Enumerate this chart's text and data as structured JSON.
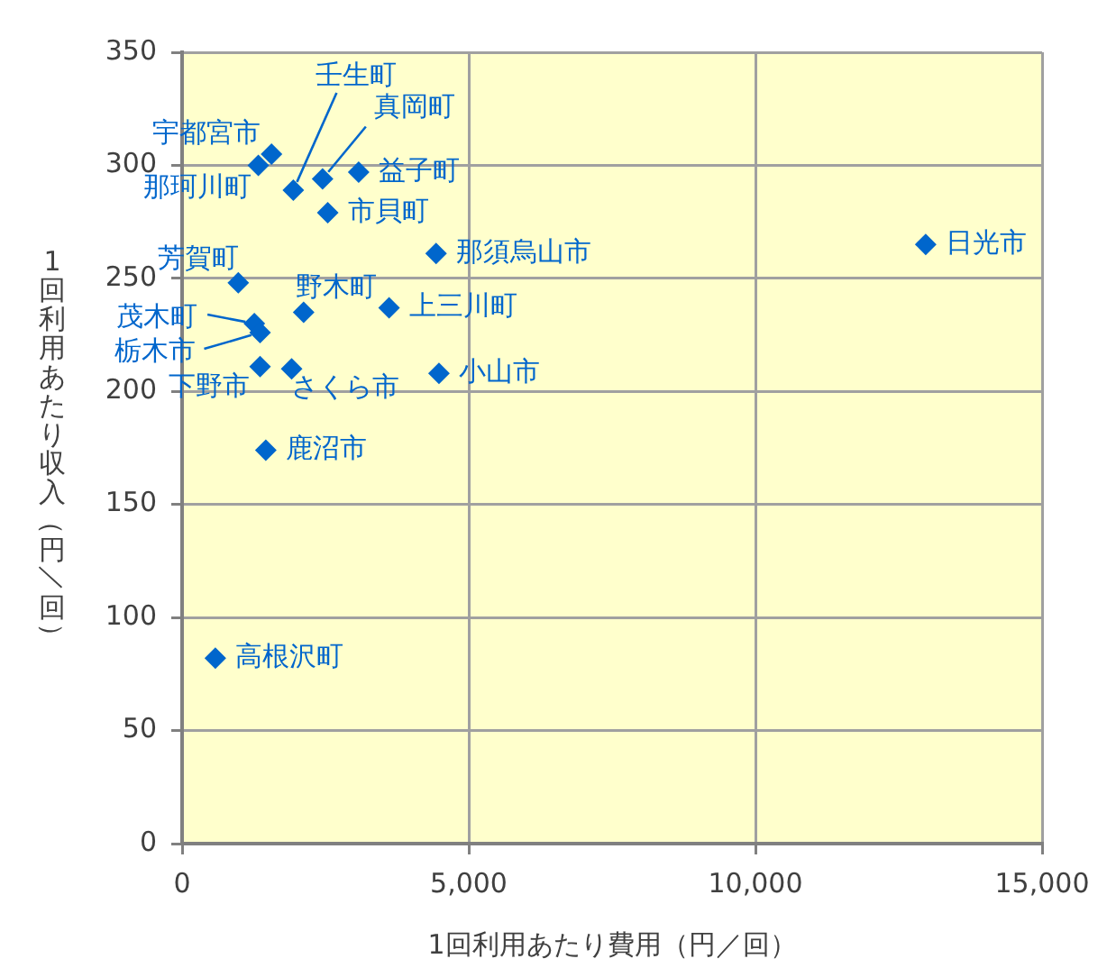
{
  "chart_data": {
    "type": "scatter",
    "xlabel": "1回利用あたり費用（円／回）",
    "ylabel": "1回利用あたり収入（円／回）",
    "x": [
      1560,
      1330,
      1940,
      2450,
      3080,
      2540,
      4430,
      980,
      2120,
      3610,
      1260,
      1360,
      1360,
      1910,
      4480,
      1460,
      580,
      12970
    ],
    "values": [
      305,
      300,
      289,
      294,
      297,
      279,
      261,
      248,
      235,
      237,
      230,
      226,
      211,
      210,
      208,
      174,
      82,
      265
    ],
    "color": "#0066cc",
    "marker": "diamond",
    "grid": true,
    "xlim": [
      0,
      15000
    ],
    "xticks": [
      0,
      {
        "value": 5000,
        "label": "5,000"
      },
      {
        "value": 10000,
        "label": "10,000"
      },
      {
        "value": 15000,
        "label": "15,000"
      }
    ],
    "ylim": [
      0,
      350
    ],
    "yticks": [
      0,
      50,
      100,
      150,
      200,
      250,
      300,
      350
    ],
    "annotations": [
      {
        "text": "宇都宮市",
        "x": 1560,
        "y": 305
      },
      {
        "text": "那珂川町",
        "x": 1330,
        "y": 300
      },
      {
        "text": "壬生町",
        "x": 1940,
        "y": 289
      },
      {
        "text": "真岡町",
        "x": 2450,
        "y": 294
      },
      {
        "text": "益子町",
        "x": 3080,
        "y": 297
      },
      {
        "text": "市貝町",
        "x": 2540,
        "y": 279
      },
      {
        "text": "那須烏山市",
        "x": 4430,
        "y": 261
      },
      {
        "text": "芳賀町",
        "x": 980,
        "y": 248
      },
      {
        "text": "野木町",
        "x": 2120,
        "y": 235
      },
      {
        "text": "上三川町",
        "x": 3610,
        "y": 237
      },
      {
        "text": "茂木町",
        "x": 1260,
        "y": 230
      },
      {
        "text": "栃木市",
        "x": 1360,
        "y": 226
      },
      {
        "text": "下野市",
        "x": 1360,
        "y": 211
      },
      {
        "text": "さくら市",
        "x": 1910,
        "y": 210
      },
      {
        "text": "小山市",
        "x": 4480,
        "y": 208
      },
      {
        "text": "鹿沼市",
        "x": 1460,
        "y": 174
      },
      {
        "text": "高根沢町",
        "x": 580,
        "y": 82
      },
      {
        "text": "日光市",
        "x": 12970,
        "y": 265
      }
    ]
  }
}
